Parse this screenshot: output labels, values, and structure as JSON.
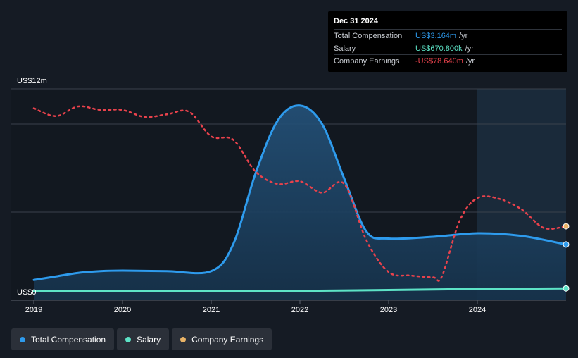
{
  "chart_data": {
    "type": "line",
    "y_top_label": "US$12m",
    "y_bottom_label": "US$0",
    "x_ticks": [
      "2019",
      "2020",
      "2021",
      "2022",
      "2023",
      "2024"
    ],
    "ylim": [
      0,
      12
    ],
    "xlim": [
      2019.0,
      2025.0
    ],
    "forecast_start": 2024.0,
    "series": [
      {
        "name": "Total Compensation",
        "color": "#2e9bed",
        "x": [
          2019.0,
          2019.25,
          2019.5,
          2019.75,
          2020.0,
          2020.5,
          2021.0,
          2021.25,
          2021.5,
          2021.75,
          2022.0,
          2022.25,
          2022.5,
          2022.75,
          2023.0,
          2023.5,
          2024.0,
          2024.5,
          2025.0
        ],
        "values": [
          1.15,
          1.35,
          1.55,
          1.65,
          1.68,
          1.65,
          1.65,
          3.2,
          7.2,
          10.2,
          11.05,
          10.0,
          6.9,
          3.9,
          3.5,
          3.6,
          3.8,
          3.65,
          3.164
        ]
      },
      {
        "name": "Salary",
        "color": "#5de3c6",
        "x": [
          2019.0,
          2020.0,
          2021.0,
          2022.0,
          2023.0,
          2024.0,
          2025.0
        ],
        "values": [
          0.52,
          0.53,
          0.51,
          0.53,
          0.58,
          0.64,
          0.6708
        ]
      },
      {
        "name": "Company Earnings",
        "color": "#e8424c",
        "x": [
          2019.0,
          2019.25,
          2019.5,
          2019.75,
          2020.0,
          2020.25,
          2020.5,
          2020.75,
          2021.0,
          2021.25,
          2021.5,
          2021.75,
          2022.0,
          2022.25,
          2022.5,
          2022.75,
          2023.0,
          2023.25,
          2023.5,
          2023.6,
          2023.8,
          2024.0,
          2024.25,
          2024.5,
          2024.75,
          2025.0
        ],
        "values": [
          10.9,
          10.45,
          11.0,
          10.8,
          10.8,
          10.4,
          10.55,
          10.7,
          9.3,
          9.1,
          7.3,
          6.6,
          6.75,
          6.1,
          6.6,
          3.4,
          1.6,
          1.4,
          1.3,
          1.35,
          4.5,
          5.8,
          5.75,
          5.15,
          4.1,
          4.2
        ]
      }
    ]
  },
  "tooltip": {
    "date": "Dec 31 2024",
    "rows": [
      {
        "label": "Total Compensation",
        "value": "US$3.164m",
        "unit": "/yr",
        "color": "#2e9bed"
      },
      {
        "label": "Salary",
        "value": "US$670.800k",
        "unit": "/yr",
        "color": "#5de3c6"
      },
      {
        "label": "Company Earnings",
        "value": "-US$78.640m",
        "unit": "/yr",
        "color": "#e8424c"
      }
    ]
  },
  "legend": [
    {
      "label": "Total Compensation",
      "color": "#2e9bed"
    },
    {
      "label": "Salary",
      "color": "#5de3c6"
    },
    {
      "label": "Company Earnings",
      "color": "#e9b366"
    }
  ],
  "colors": {
    "background": "#151b24",
    "grid": "#3a414c",
    "area_fill": "#1b3a55",
    "forecast_band": "#1a2a3a",
    "earnings_end_marker": "#e9b366"
  }
}
